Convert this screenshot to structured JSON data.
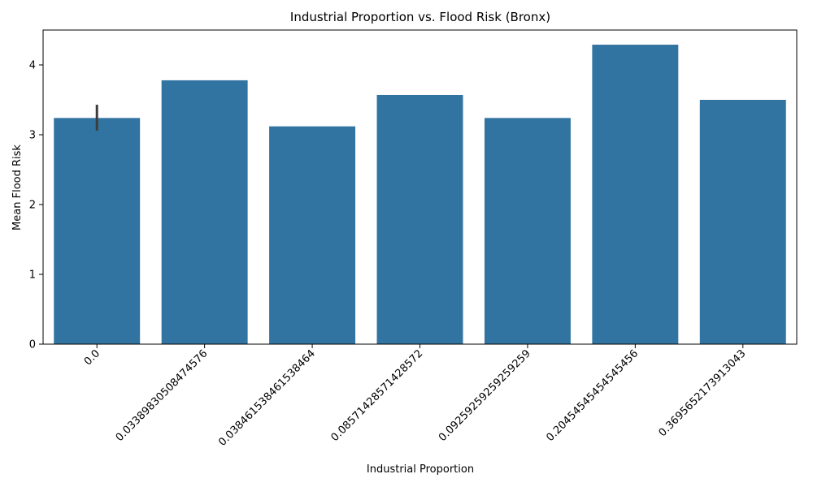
{
  "chart_data": {
    "type": "bar",
    "title": "Industrial Proportion vs. Flood Risk (Bronx)",
    "xlabel": "Industrial Proportion",
    "ylabel": "Mean Flood Risk",
    "categories": [
      "0.0",
      "0.03389830508474576",
      "0.038461538461538464",
      "0.08571428571428572",
      "0.09259259259259259",
      "0.20454545454545456",
      "0.3695652173913043"
    ],
    "values": [
      3.24,
      3.78,
      3.12,
      3.57,
      3.24,
      4.29,
      3.5
    ],
    "error_bars": [
      [
        3.06,
        3.43
      ],
      null,
      null,
      null,
      null,
      null,
      null
    ],
    "ylim": [
      0,
      4.5
    ],
    "yticks": [
      0,
      1,
      2,
      3,
      4
    ],
    "grid": false,
    "bar_color": "#3274a1",
    "error_color": "#3c3c3c"
  }
}
